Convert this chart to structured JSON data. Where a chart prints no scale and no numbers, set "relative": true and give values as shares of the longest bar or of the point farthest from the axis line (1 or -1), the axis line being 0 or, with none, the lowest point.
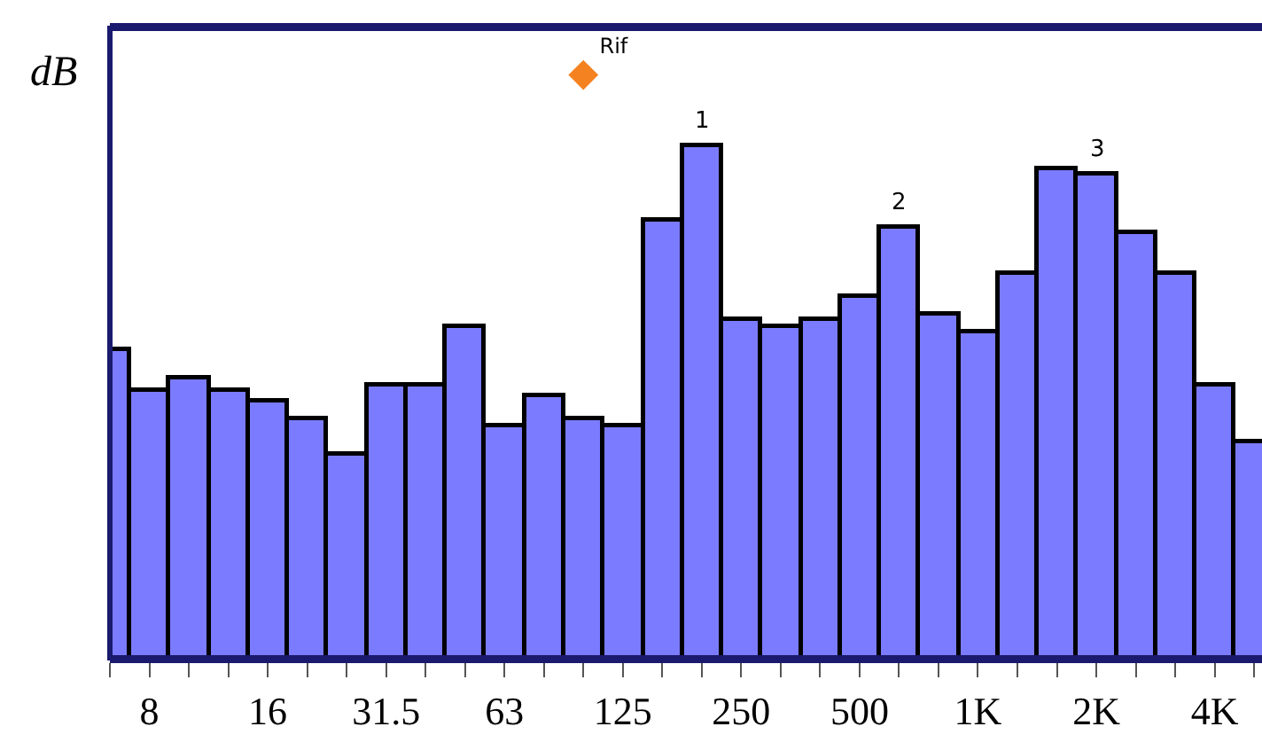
{
  "chart_data": {
    "type": "bar",
    "ylabel": "dB",
    "relative": true,
    "annotations": [
      {
        "text": "1",
        "y": 0.88
      },
      {
        "text": "2",
        "y": 0.74
      },
      {
        "text": "3",
        "y": 0.83
      }
    ],
    "categories": [
      null,
      "8",
      null,
      null,
      "16",
      null,
      null,
      "31.5",
      null,
      null,
      "63",
      null,
      null,
      "125",
      null,
      null,
      "250",
      null,
      null,
      "500",
      null,
      null,
      "1K",
      null,
      null,
      "2K",
      null,
      null,
      "4K",
      null
    ],
    "series": [
      {
        "color": "#7b7bff",
        "values": [
          0.53,
          0.46,
          0.48,
          0.46,
          0.44,
          0.41,
          0.35,
          0.47,
          0.47,
          0.57,
          0.4,
          0.45,
          0.41,
          0.4,
          0.75,
          0.88,
          0.58,
          0.57,
          0.58,
          0.62,
          0.74,
          0.59,
          0.56,
          0.66,
          0.84,
          0.83,
          0.73,
          0.66,
          0.47,
          0.37
        ]
      },
      {
        "name": "Rif",
        "type": "scatter",
        "color": "#f58220",
        "marker": "diamond",
        "values": [
          null,
          null,
          null,
          null,
          null,
          null,
          null,
          null,
          null,
          null,
          null,
          null,
          1.0,
          null,
          null,
          null,
          null,
          null,
          null,
          null,
          null,
          null,
          null,
          null,
          null,
          null,
          null,
          null,
          null,
          null
        ]
      }
    ]
  }
}
